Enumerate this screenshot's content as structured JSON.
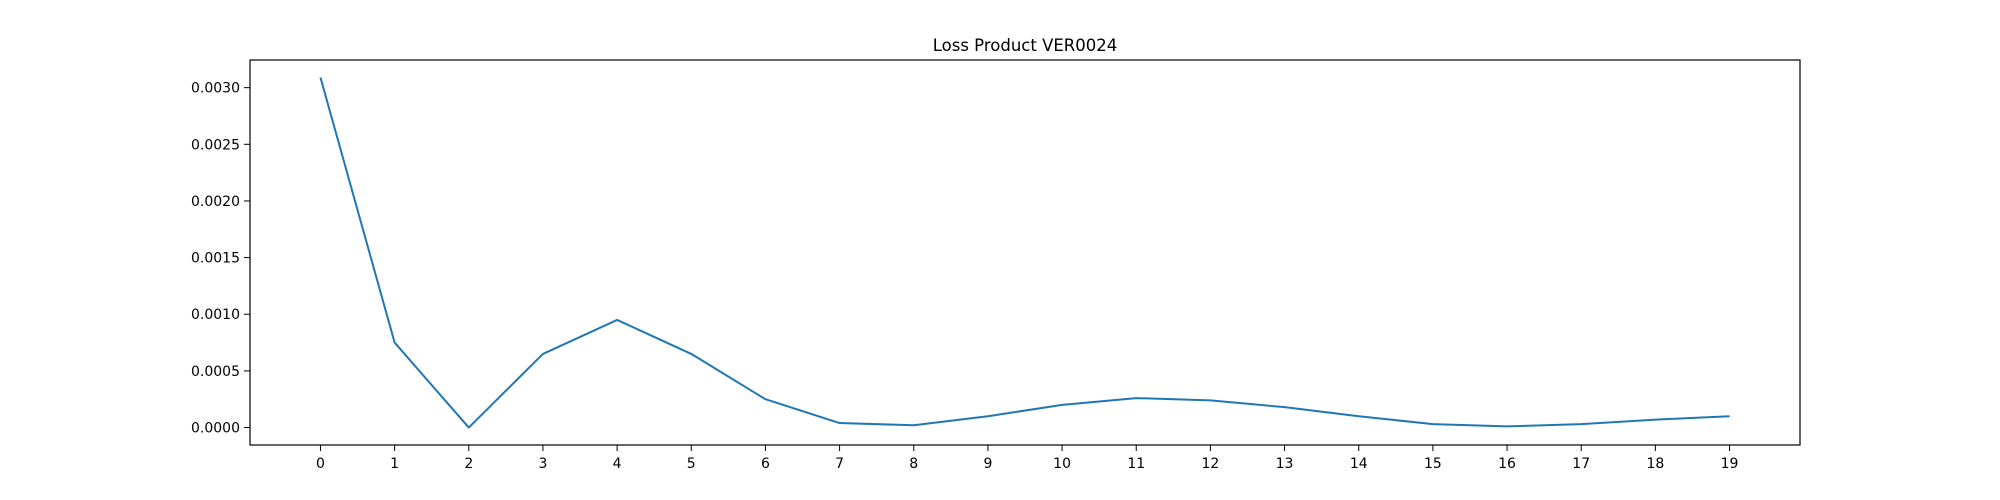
{
  "chart_data": {
    "type": "line",
    "title": "Loss Product VER0024",
    "xlabel": "",
    "ylabel": "",
    "x": [
      0,
      1,
      2,
      3,
      4,
      5,
      6,
      7,
      8,
      9,
      10,
      11,
      12,
      13,
      14,
      15,
      16,
      17,
      18,
      19
    ],
    "series": [
      {
        "values": [
          0.00309,
          0.00075,
          0.0,
          0.00065,
          0.00095,
          0.00065,
          0.00025,
          4e-05,
          2e-05,
          0.0001,
          0.0002,
          0.00026,
          0.00024,
          0.00018,
          0.0001,
          3e-05,
          1e-05,
          3e-05,
          7e-05,
          0.0001
        ],
        "color": "#1f77b4"
      }
    ],
    "xticks": [
      "0",
      "1",
      "2",
      "3",
      "4",
      "5",
      "6",
      "7",
      "8",
      "9",
      "10",
      "11",
      "12",
      "13",
      "14",
      "15",
      "16",
      "17",
      "18",
      "19"
    ],
    "yticks": [
      0.0,
      0.0005,
      0.001,
      0.0015,
      0.002,
      0.0025,
      0.003
    ],
    "ytick_labels": [
      "0.0000",
      "0.0005",
      "0.0010",
      "0.0015",
      "0.0020",
      "0.0025",
      "0.0030"
    ],
    "xlim": [
      -0.95,
      19.95
    ],
    "ylim": [
      -0.000154,
      0.003244
    ],
    "grid": false,
    "legend": "none"
  }
}
